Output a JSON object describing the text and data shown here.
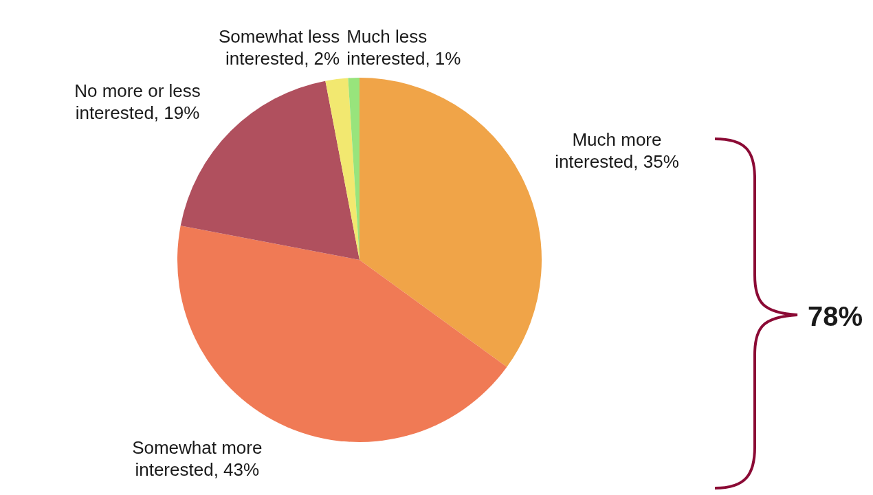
{
  "chart_data": {
    "type": "pie",
    "categories": [
      "Much more interested",
      "Somewhat more interested",
      "No more or less interested",
      "Somewhat less interested",
      "Much less interested"
    ],
    "values": [
      35,
      43,
      19,
      2,
      1
    ],
    "value_labels": [
      "35%",
      "43%",
      "19%",
      "2%",
      "1%"
    ],
    "colors": [
      "#f0a448",
      "#f07a55",
      "#b0505e",
      "#f2e870",
      "#98e47c"
    ],
    "annotations": [
      "78%"
    ]
  }
}
